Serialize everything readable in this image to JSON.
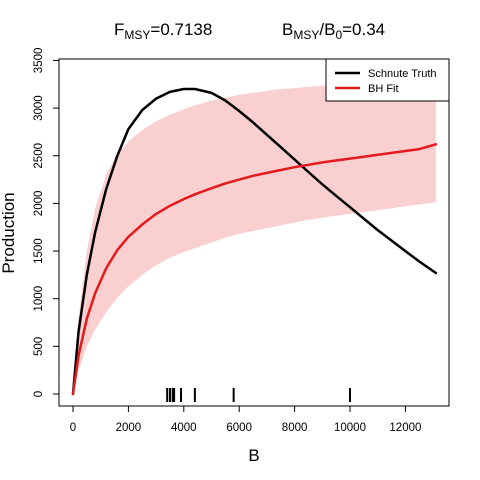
{
  "chart_data": {
    "type": "line",
    "title_left": {
      "base": "F",
      "sub": "MSY",
      "rest": "=0.7138"
    },
    "title_right": {
      "base1": "B",
      "sub1": "MSY",
      "slash": "/",
      "base2": "B",
      "sub2": "0",
      "rest": "=0.34"
    },
    "xlabel": "B",
    "ylabel": "Production",
    "xlim": [
      0,
      13500
    ],
    "ylim": [
      0,
      3500
    ],
    "xticks": [
      0,
      2000,
      4000,
      6000,
      8000,
      10000,
      12000
    ],
    "yticks": [
      0,
      500,
      1000,
      1500,
      2000,
      2500,
      3000,
      3500
    ],
    "legend_position": "top-right",
    "series": [
      {
        "name": "Schnute Truth",
        "color": "#000000",
        "x": [
          0,
          200,
          500,
          800,
          1200,
          1600,
          2000,
          2500,
          3000,
          3500,
          4000,
          4400,
          5000,
          5500,
          6000,
          6500,
          7000,
          7500,
          8000,
          8500,
          9000,
          9500,
          10000,
          10500,
          11000,
          11500,
          12000,
          12500,
          13100
        ],
        "y": [
          0,
          650,
          1250,
          1700,
          2150,
          2500,
          2780,
          2980,
          3100,
          3170,
          3200,
          3200,
          3160,
          3080,
          2970,
          2850,
          2720,
          2590,
          2460,
          2330,
          2200,
          2080,
          1960,
          1840,
          1720,
          1610,
          1500,
          1390,
          1270
        ]
      },
      {
        "name": "BH Fit",
        "color": "#e41a1c",
        "x": [
          0,
          200,
          500,
          800,
          1200,
          1600,
          2000,
          2500,
          3000,
          3500,
          4000,
          4400,
          5000,
          5500,
          6000,
          6500,
          7000,
          7500,
          8000,
          8500,
          9000,
          9500,
          10000,
          10500,
          11000,
          11500,
          12000,
          12500,
          13100
        ],
        "y": [
          0,
          400,
          790,
          1060,
          1320,
          1510,
          1650,
          1780,
          1890,
          1975,
          2045,
          2095,
          2160,
          2210,
          2250,
          2290,
          2320,
          2350,
          2380,
          2405,
          2430,
          2450,
          2470,
          2490,
          2510,
          2530,
          2550,
          2570,
          2620
        ]
      }
    ],
    "band": {
      "color": "#f9cfcf",
      "x": [
        0,
        200,
        500,
        800,
        1200,
        1600,
        2000,
        2500,
        3000,
        3500,
        4000,
        4400,
        5000,
        5500,
        6000,
        6500,
        7000,
        7500,
        8000,
        8500,
        9000,
        9500,
        10000,
        10500,
        11000,
        11500,
        12000,
        12500,
        13100
      ],
      "lower": [
        0,
        250,
        500,
        680,
        860,
        1010,
        1130,
        1250,
        1350,
        1430,
        1490,
        1530,
        1590,
        1640,
        1680,
        1710,
        1740,
        1770,
        1800,
        1830,
        1850,
        1870,
        1890,
        1910,
        1930,
        1950,
        1970,
        1990,
        2010
      ],
      "upper": [
        0,
        800,
        1500,
        1950,
        2300,
        2520,
        2650,
        2770,
        2860,
        2930,
        2990,
        3030,
        3080,
        3110,
        3140,
        3160,
        3180,
        3200,
        3210,
        3225,
        3235,
        3245,
        3255,
        3260,
        3270,
        3275,
        3280,
        3285,
        3290
      ]
    },
    "rug_x": [
      3400,
      3500,
      3600,
      3650,
      3900,
      4400,
      5800,
      10000
    ]
  }
}
